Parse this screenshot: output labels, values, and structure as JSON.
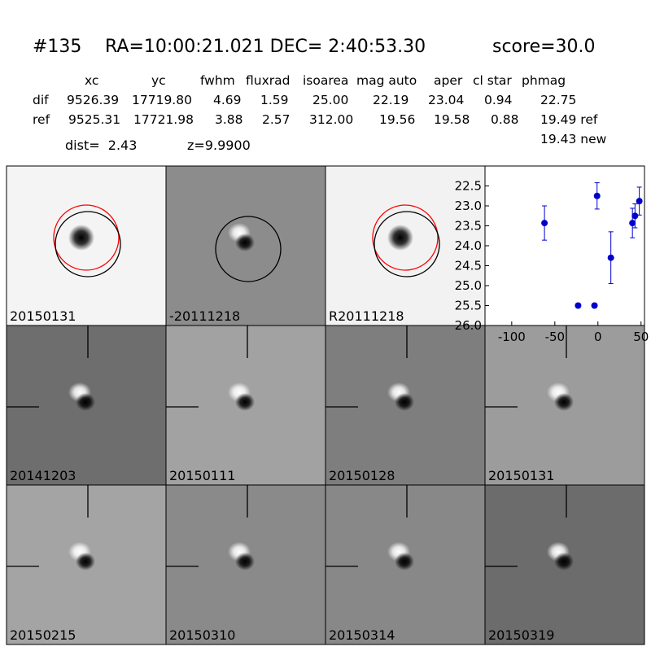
{
  "header": {
    "id": "#135",
    "coords": "RA=10:00:21.021 DEC= 2:40:53.30",
    "score": "score=30.0"
  },
  "table": {
    "columns": [
      "xc",
      "yc",
      "fwhm",
      "fluxrad",
      "isoarea",
      "mag auto",
      "aper",
      "cl star",
      "phmag"
    ],
    "rows": [
      [
        "dif",
        "9526.39",
        "17719.80",
        "4.69",
        "1.59",
        "25.00",
        "22.19",
        "23.04",
        "0.94",
        "22.75"
      ],
      [
        "ref",
        "9525.31",
        "17721.98",
        "3.88",
        "2.57",
        "312.00",
        "19.56",
        "19.58",
        "0.88",
        "19.49 ref"
      ]
    ],
    "extra": "19.43 new"
  },
  "dist": "dist=  2.43",
  "z": "z=9.9900",
  "stamps": [
    {
      "label": "20150131"
    },
    {
      "label": "-20111218"
    },
    {
      "label": "R20111218"
    },
    {
      "label": "20141203"
    },
    {
      "label": "20150111"
    },
    {
      "label": "20150128"
    },
    {
      "label": "20150131",
      "color": "#ff0000"
    },
    {
      "label": "20150215"
    },
    {
      "label": "20150310"
    },
    {
      "label": "20150314"
    },
    {
      "label": "20150319"
    }
  ],
  "chart_data": {
    "type": "scatter",
    "color": "#0000cc",
    "x": [
      -62,
      -23,
      -4,
      -1,
      15,
      40,
      43,
      48
    ],
    "values": [
      23.43,
      25.5,
      25.5,
      22.75,
      24.3,
      23.43,
      23.25,
      22.88
    ],
    "errors": [
      0.43,
      0.05,
      0.05,
      0.33,
      0.65,
      0.37,
      0.3,
      0.35
    ],
    "xlim": [
      -131,
      54
    ],
    "ylim": [
      26.0,
      22.0
    ],
    "xticks": [
      -100,
      -50,
      0,
      50
    ],
    "yticks": [
      {
        "value": 22.5,
        "label": "22.5"
      },
      {
        "value": 23.0,
        "label": "23.0"
      },
      {
        "value": 23.5,
        "label": "23.5"
      },
      {
        "value": 24.0,
        "label": "24.0"
      },
      {
        "value": 24.5,
        "label": "24.5"
      },
      {
        "value": 25.0,
        "label": "25.0"
      },
      {
        "value": 25.5,
        "label": "25.5"
      },
      {
        "value": 26.0,
        "label": "26.0"
      }
    ]
  }
}
